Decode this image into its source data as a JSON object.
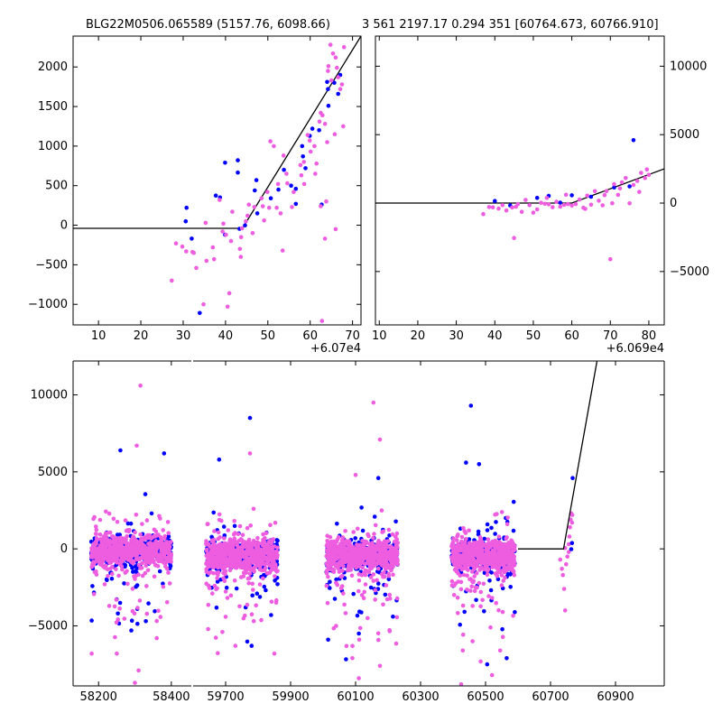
{
  "titles": {
    "left": "BLG22M0506.065589 (5157.76, 6098.66)",
    "right": "3 561 2197.17 0.294 351 [60764.673, 60766.910]"
  },
  "colors": {
    "series_a": "#0000ff",
    "series_b": "#ee5de0",
    "model": "#000000"
  },
  "chart_data": [
    {
      "id": "zoom_left",
      "type": "scatter",
      "xlim": [
        4.0,
        72.0
      ],
      "ylim": [
        -1260,
        2390
      ],
      "x_offset_label": "+6.07e4",
      "xticks": [
        10,
        20,
        30,
        40,
        50,
        60,
        70
      ],
      "yticks": [
        -1000,
        -500,
        0,
        500,
        1000,
        1500,
        2000
      ],
      "y_axis_side": "left",
      "model": [
        [
          4.0,
          -40
        ],
        [
          44.0,
          -40
        ],
        [
          72.0,
          2390
        ]
      ],
      "series": [
        {
          "color_key": "series_a",
          "points": [
            [
              30.6,
              50
            ],
            [
              30.8,
              220
            ],
            [
              32.0,
              -170
            ],
            [
              33.9,
              -1110
            ],
            [
              37.7,
              375
            ],
            [
              38.7,
              350
            ],
            [
              39.9,
              -120
            ],
            [
              39.9,
              790
            ],
            [
              42.9,
              820
            ],
            [
              42.9,
              665
            ],
            [
              43.3,
              -45
            ],
            [
              44.6,
              -2
            ],
            [
              46.9,
              440
            ],
            [
              47.3,
              570
            ],
            [
              47.5,
              150
            ],
            [
              50.7,
              340
            ],
            [
              52.5,
              450
            ],
            [
              53.8,
              700
            ],
            [
              55.5,
              500
            ],
            [
              56.6,
              270
            ],
            [
              56.6,
              460
            ],
            [
              58.1,
              1000
            ],
            [
              58.3,
              870
            ],
            [
              58.9,
              720
            ],
            [
              59.9,
              1130
            ],
            [
              60.5,
              1220
            ],
            [
              62.1,
              1200
            ],
            [
              62.7,
              260
            ],
            [
              64.0,
              1810
            ],
            [
              64.2,
              1720
            ],
            [
              64.3,
              1510
            ],
            [
              65.7,
              1800
            ],
            [
              66.6,
              1660
            ],
            [
              67.1,
              1900
            ]
          ]
        },
        {
          "color_key": "series_b",
          "points": [
            [
              27.3,
              -700
            ],
            [
              28.3,
              -230
            ],
            [
              29.8,
              -270
            ],
            [
              30.7,
              -330
            ],
            [
              32.2,
              -340
            ],
            [
              32.5,
              -350
            ],
            [
              33.1,
              -540
            ],
            [
              34.8,
              -1000
            ],
            [
              35.3,
              30
            ],
            [
              35.5,
              -450
            ],
            [
              37.0,
              -280
            ],
            [
              37.3,
              -430
            ],
            [
              38.6,
              320
            ],
            [
              39.3,
              -80
            ],
            [
              39.5,
              20
            ],
            [
              40.1,
              -120
            ],
            [
              40.5,
              -1030
            ],
            [
              40.9,
              -860
            ],
            [
              41.3,
              -200
            ],
            [
              41.6,
              170
            ],
            [
              43.4,
              -300
            ],
            [
              43.6,
              -400
            ],
            [
              43.7,
              -150
            ],
            [
              43.9,
              -40
            ],
            [
              44.8,
              50
            ],
            [
              45.2,
              120
            ],
            [
              45.5,
              260
            ],
            [
              46.4,
              -100
            ],
            [
              46.8,
              230
            ],
            [
              48.5,
              340
            ],
            [
              48.8,
              240
            ],
            [
              49.1,
              60
            ],
            [
              49.9,
              420
            ],
            [
              50.3,
              220
            ],
            [
              50.6,
              1060
            ],
            [
              51.4,
              1000
            ],
            [
              52.1,
              220
            ],
            [
              52.4,
              520
            ],
            [
              53.0,
              150
            ],
            [
              53.5,
              -320
            ],
            [
              53.7,
              880
            ],
            [
              54.4,
              650
            ],
            [
              54.6,
              530
            ],
            [
              55.7,
              230
            ],
            [
              56.1,
              420
            ],
            [
              57.7,
              760
            ],
            [
              57.9,
              630
            ],
            [
              58.6,
              520
            ],
            [
              58.5,
              800
            ],
            [
              59.4,
              1140
            ],
            [
              59.9,
              1070
            ],
            [
              60.1,
              930
            ],
            [
              61.0,
              1000
            ],
            [
              61.2,
              650
            ],
            [
              61.5,
              780
            ],
            [
              62.5,
              240
            ],
            [
              62.2,
              1310
            ],
            [
              62.5,
              1420
            ],
            [
              62.8,
              -1210
            ],
            [
              62.9,
              1390
            ],
            [
              63.5,
              1280
            ],
            [
              63.5,
              -170
            ],
            [
              63.8,
              300
            ],
            [
              64.0,
              1050
            ],
            [
              64.2,
              1950
            ],
            [
              64.8,
              2280
            ],
            [
              65.4,
              2170
            ],
            [
              65.8,
              1150
            ],
            [
              66.0,
              -50
            ],
            [
              66.3,
              1990
            ],
            [
              66.6,
              1870
            ],
            [
              67.1,
              1720
            ],
            [
              67.5,
              1780
            ],
            [
              68.0,
              2250
            ],
            [
              67.8,
              1250
            ],
            [
              64.3,
              2010
            ],
            [
              65.0,
              1830
            ],
            [
              66.0,
              2120
            ]
          ]
        }
      ]
    },
    {
      "id": "zoom_right",
      "type": "scatter",
      "xlim": [
        9.0,
        84.0
      ],
      "ylim": [
        -8900,
        12200
      ],
      "x_offset_label": "+6.069e4",
      "xticks": [
        10,
        20,
        30,
        40,
        50,
        60,
        70,
        80
      ],
      "yticks": [
        -5000,
        0,
        5000,
        10000
      ],
      "y_axis_side": "right",
      "model": [
        [
          9.0,
          0
        ],
        [
          60.0,
          0
        ],
        [
          84.0,
          2500
        ]
      ],
      "series": [
        {
          "color_key": "series_a",
          "points": [
            [
              40.0,
              150
            ],
            [
              44.0,
              -170
            ],
            [
              51.0,
              380
            ],
            [
              54.0,
              530
            ],
            [
              57.0,
              30
            ],
            [
              60.0,
              570
            ],
            [
              65.0,
              460
            ],
            [
              71.0,
              1140
            ],
            [
              75.0,
              1220
            ],
            [
              76.0,
              4600
            ]
          ]
        },
        {
          "color_key": "series_b",
          "points": [
            [
              37.0,
              -800
            ],
            [
              38.5,
              -290
            ],
            [
              39.5,
              -310
            ],
            [
              41.0,
              -400
            ],
            [
              42.0,
              -150
            ],
            [
              43.0,
              -540
            ],
            [
              44.5,
              -320
            ],
            [
              45.0,
              -2550
            ],
            [
              46.0,
              -70
            ],
            [
              47.0,
              -640
            ],
            [
              48.0,
              230
            ],
            [
              49.0,
              -150
            ],
            [
              50.0,
              -700
            ],
            [
              51.0,
              -460
            ],
            [
              52.0,
              20
            ],
            [
              53.0,
              -50
            ],
            [
              54.0,
              -90
            ],
            [
              55.0,
              -300
            ],
            [
              56.0,
              100
            ],
            [
              57.0,
              -260
            ],
            [
              58.0,
              -130
            ],
            [
              59.0,
              -70
            ],
            [
              60.0,
              -180
            ],
            [
              61.0,
              -70
            ],
            [
              62.0,
              260
            ],
            [
              63.0,
              -340
            ],
            [
              64.0,
              540
            ],
            [
              65.0,
              -120
            ],
            [
              66.0,
              870
            ],
            [
              67.0,
              170
            ],
            [
              68.0,
              -160
            ],
            [
              69.0,
              880
            ],
            [
              70.0,
              -4100
            ],
            [
              70.5,
              -10
            ],
            [
              71.0,
              1380
            ],
            [
              72.0,
              600
            ],
            [
              73.0,
              1520
            ],
            [
              74.0,
              1830
            ],
            [
              75.0,
              -20
            ],
            [
              76.0,
              1330
            ],
            [
              77.0,
              1620
            ],
            [
              78.0,
              2210
            ],
            [
              79.0,
              1830
            ],
            [
              80.0,
              2060
            ],
            [
              45.5,
              -260
            ],
            [
              53.5,
              380
            ],
            [
              58.5,
              610
            ],
            [
              63.5,
              -420
            ],
            [
              68.5,
              580
            ],
            [
              72.5,
              1070
            ],
            [
              77.5,
              820
            ],
            [
              79.5,
              2460
            ]
          ]
        }
      ]
    },
    {
      "id": "full_lightcurve",
      "type": "scatter",
      "ylim": [
        -8900,
        12200
      ],
      "yticks": [
        -5000,
        0,
        5000,
        10000
      ],
      "y_axis_side": "left",
      "broken_x_axis": true,
      "segments": [
        {
          "xlim": [
            58130,
            58455
          ],
          "xticks": [
            58200,
            58400
          ]
        },
        {
          "xlim": [
            59600,
            61050
          ],
          "xticks": [
            59700,
            59900,
            60100,
            60300,
            60500,
            60700,
            60900
          ]
        }
      ],
      "model": [
        [
          60600,
          0
        ],
        [
          60740,
          0
        ],
        [
          60843,
          12200
        ]
      ],
      "seasons": [
        {
          "t0": 58180,
          "t1": 58400,
          "seed": 11
        },
        {
          "t0": 59640,
          "t1": 59860,
          "seed": 23
        },
        {
          "t0": 60010,
          "t1": 60230,
          "seed": 37
        },
        {
          "t0": 60395,
          "t1": 60590,
          "seed": 53
        }
      ],
      "outliers": {
        "series_a": [
          [
            58260,
            6400
          ],
          [
            58380,
            6200
          ],
          [
            59680,
            5800
          ],
          [
            59775,
            8500
          ],
          [
            60170,
            4600
          ],
          [
            60455,
            9300
          ],
          [
            60440,
            5600
          ],
          [
            60480,
            5500
          ],
          [
            60215,
            -4400
          ],
          [
            58330,
            -4700
          ],
          [
            59840,
            -4300
          ],
          [
            59780,
            -6300
          ],
          [
            60505,
            -7500
          ],
          [
            60565,
            -7100
          ],
          [
            58290,
            -5300
          ],
          [
            60110,
            -5500
          ]
        ],
        "series_b": [
          [
            58315,
            10600
          ],
          [
            58305,
            6700
          ],
          [
            59775,
            6200
          ],
          [
            60155,
            9500
          ],
          [
            60175,
            7100
          ],
          [
            60100,
            4800
          ],
          [
            58250,
            -6800
          ],
          [
            58310,
            -7900
          ],
          [
            58300,
            -8700
          ],
          [
            59730,
            -6300
          ],
          [
            59850,
            -6800
          ],
          [
            60110,
            -8400
          ],
          [
            60090,
            -7100
          ],
          [
            60175,
            -7600
          ],
          [
            60425,
            -8800
          ],
          [
            60520,
            -8200
          ],
          [
            60545,
            -6600
          ],
          [
            60430,
            -6600
          ],
          [
            58360,
            -5800
          ],
          [
            59690,
            -5400
          ],
          [
            60040,
            -5000
          ],
          [
            60460,
            -6000
          ]
        ]
      },
      "event_points": {
        "series_a": [
          [
            60764,
            -20
          ],
          [
            60766,
            380
          ],
          [
            60768,
            4600
          ]
        ],
        "series_b": [
          [
            60730,
            -700
          ],
          [
            60735,
            -1300
          ],
          [
            60738,
            -1700
          ],
          [
            60742,
            -2600
          ],
          [
            60745,
            -4000
          ],
          [
            60748,
            -1000
          ],
          [
            60752,
            -500
          ],
          [
            60756,
            300
          ],
          [
            60758,
            800
          ],
          [
            60760,
            1400
          ],
          [
            60762,
            1900
          ],
          [
            60764,
            2300
          ],
          [
            60766,
            1700
          ],
          [
            60767,
            2200
          ],
          [
            60756,
            -200
          ],
          [
            60745,
            50
          ]
        ]
      }
    }
  ]
}
